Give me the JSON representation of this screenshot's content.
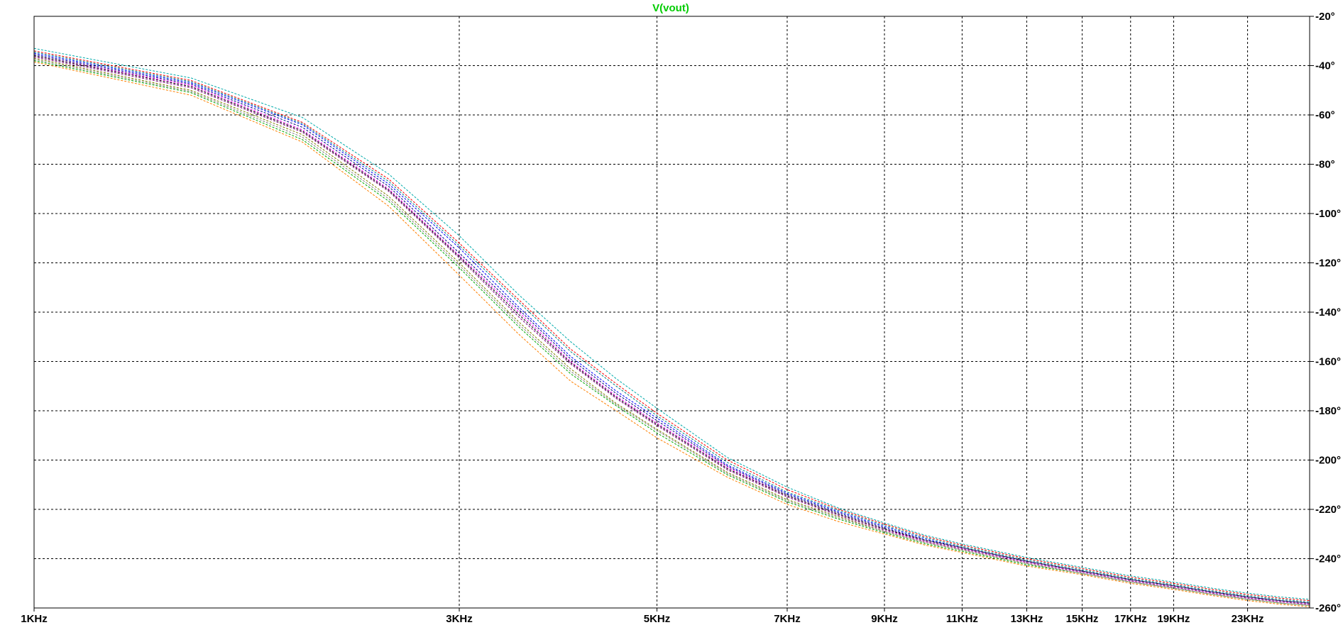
{
  "chart_data": {
    "type": "line",
    "title": "V(vout)",
    "title_color": "#00cc00",
    "x_scale": "log",
    "xlim": [
      1000,
      27000
    ],
    "ylim": [
      -260,
      -20
    ],
    "x_ticks": [
      {
        "value": 1000,
        "label": "1KHz"
      },
      {
        "value": 3000,
        "label": "3KHz"
      },
      {
        "value": 5000,
        "label": "5KHz"
      },
      {
        "value": 7000,
        "label": "7KHz"
      },
      {
        "value": 9000,
        "label": "9KHz"
      },
      {
        "value": 11000,
        "label": "11KHz"
      },
      {
        "value": 13000,
        "label": "13KHz"
      },
      {
        "value": 15000,
        "label": "15KHz"
      },
      {
        "value": 17000,
        "label": "17KHz"
      },
      {
        "value": 19000,
        "label": "19KHz"
      },
      {
        "value": 23000,
        "label": "23KHz"
      }
    ],
    "y_ticks": [
      {
        "value": -20,
        "label": "-20°"
      },
      {
        "value": -40,
        "label": "-40°"
      },
      {
        "value": -60,
        "label": "-60°"
      },
      {
        "value": -80,
        "label": "-80°"
      },
      {
        "value": -100,
        "label": "-100°"
      },
      {
        "value": -120,
        "label": "-120°"
      },
      {
        "value": -140,
        "label": "-140°"
      },
      {
        "value": -160,
        "label": "-160°"
      },
      {
        "value": -180,
        "label": "-180°"
      },
      {
        "value": -200,
        "label": "-200°"
      },
      {
        "value": -220,
        "label": "-220°"
      },
      {
        "value": -240,
        "label": "-240°"
      },
      {
        "value": -260,
        "label": "-260°"
      }
    ],
    "grid": true,
    "line_style": "dotted",
    "x": [
      1000,
      1500,
      2000,
      2500,
      3000,
      3500,
      4000,
      4500,
      5000,
      6000,
      7000,
      8000,
      9000,
      10000,
      11000,
      13000,
      15000,
      17000,
      19000,
      21000,
      23000,
      25000,
      27000
    ],
    "series": [
      {
        "color": "#ff0000",
        "values": [
          -34,
          -46,
          -63,
          -86,
          -112,
          -135,
          -155,
          -169,
          -181,
          -200,
          -212,
          -220,
          -226,
          -231,
          -234.5,
          -240,
          -244,
          -247.5,
          -250,
          -252.5,
          -254.5,
          -256,
          -257
        ]
      },
      {
        "color": "#0000ff",
        "values": [
          -35,
          -47,
          -64,
          -88,
          -114,
          -138,
          -158,
          -172,
          -183,
          -202,
          -213.5,
          -221,
          -227,
          -232,
          -235.5,
          -241,
          -245,
          -248.5,
          -251,
          -253.5,
          -255.5,
          -257,
          -258
        ]
      },
      {
        "color": "#00aa00",
        "values": [
          -38,
          -51,
          -70,
          -95,
          -122,
          -146,
          -165,
          -178,
          -189,
          -206,
          -217,
          -224,
          -229.5,
          -234,
          -237,
          -242.5,
          -246,
          -249.5,
          -252,
          -254.5,
          -256.5,
          -258,
          -259
        ]
      },
      {
        "color": "#ff00ff",
        "values": [
          -36,
          -48,
          -66,
          -90,
          -117,
          -140,
          -160,
          -174,
          -185,
          -203,
          -214.5,
          -222,
          -228,
          -233,
          -236,
          -241.5,
          -245.5,
          -249,
          -251.5,
          -254,
          -256,
          -257.5,
          -258.5
        ]
      },
      {
        "color": "#00aaaa",
        "values": [
          -33,
          -45,
          -61,
          -84,
          -109,
          -133,
          -152,
          -167,
          -179,
          -199,
          -211,
          -219.5,
          -225.5,
          -230.5,
          -234,
          -239.5,
          -243.5,
          -247,
          -249.5,
          -252,
          -254,
          -255.5,
          -256.5
        ]
      },
      {
        "color": "#000080",
        "values": [
          -35.5,
          -47.5,
          -65,
          -89,
          -116,
          -139,
          -159,
          -173,
          -184,
          -202.5,
          -214,
          -221.5,
          -227.5,
          -232.5,
          -235.5,
          -241,
          -245,
          -248.5,
          -251,
          -253.5,
          -255.5,
          -257,
          -258
        ]
      },
      {
        "color": "#808000",
        "values": [
          -37,
          -50,
          -68,
          -93,
          -120,
          -144,
          -163,
          -177,
          -187.5,
          -205,
          -216,
          -223,
          -229,
          -233.5,
          -236.5,
          -242,
          -246,
          -249.5,
          -252,
          -254.5,
          -256.5,
          -258,
          -259
        ]
      },
      {
        "color": "#800080",
        "values": [
          -36.5,
          -49,
          -67,
          -91,
          -118,
          -142,
          -161,
          -175,
          -186,
          -204,
          -215,
          -222.5,
          -228.5,
          -233,
          -236,
          -241.5,
          -245.5,
          -249,
          -251.5,
          -254,
          -256,
          -257.5,
          -258.5
        ]
      },
      {
        "color": "#ff8000",
        "values": [
          -38.5,
          -52,
          -71,
          -97,
          -125,
          -149,
          -168,
          -180,
          -191,
          -207,
          -218,
          -225,
          -230,
          -234.5,
          -237.5,
          -243,
          -246.5,
          -250,
          -252.5,
          -255,
          -257,
          -258.5,
          -259.5
        ]
      },
      {
        "color": "#008080",
        "values": [
          -34.5,
          -46.5,
          -63.5,
          -87,
          -113,
          -136,
          -156,
          -170,
          -182,
          -201,
          -213,
          -220.5,
          -226.5,
          -231.5,
          -235,
          -240.5,
          -244.5,
          -248,
          -250.5,
          -253,
          -255,
          -256.5,
          -257.5
        ]
      },
      {
        "color": "#808080",
        "values": [
          -37.5,
          -50.5,
          -69,
          -94,
          -121,
          -145,
          -164,
          -177.5,
          -188,
          -205.5,
          -216.5,
          -223.5,
          -229,
          -233.5,
          -236.5,
          -242,
          -246,
          -249.5,
          -252,
          -254.5,
          -256.5,
          -258,
          -259
        ]
      },
      {
        "color": "#000000",
        "values": [
          -36,
          -48.5,
          -66.5,
          -90.5,
          -117.5,
          -141,
          -160.5,
          -174.5,
          -185.5,
          -203.5,
          -214.5,
          -222,
          -228,
          -232.5,
          -235.5,
          -241,
          -245,
          -248.5,
          -251,
          -253.5,
          -255.5,
          -257,
          -258
        ]
      }
    ]
  }
}
